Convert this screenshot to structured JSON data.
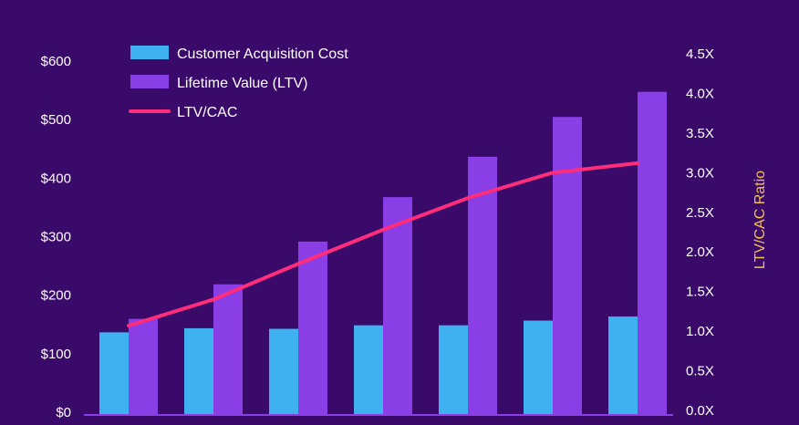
{
  "chart_data": {
    "type": "bar",
    "categories": [
      "",
      "",
      "",
      "",
      "",
      "",
      ""
    ],
    "series": [
      {
        "name": "Customer Acquisition Cost",
        "kind": "bar",
        "axis": "left",
        "color": "#3fb0f0",
        "values": [
          135,
          142,
          141,
          147,
          147,
          155,
          162
        ]
      },
      {
        "name": "Lifetime Value (LTV)",
        "kind": "bar",
        "axis": "left",
        "color": "#8a3ee6",
        "values": [
          158,
          217,
          290,
          366,
          435,
          503,
          546
        ]
      },
      {
        "name": "LTV/CAC",
        "kind": "line",
        "axis": "right",
        "color": "#ff2d7a",
        "values": [
          1.07,
          1.4,
          1.85,
          2.28,
          2.68,
          3.0,
          3.12
        ]
      }
    ],
    "y_left": {
      "label": "",
      "range": [
        0,
        600
      ],
      "ticks": [
        0,
        100,
        200,
        300,
        400,
        500,
        600
      ],
      "tick_labels": [
        "$0",
        "$100",
        "$200",
        "$300",
        "$400",
        "$500",
        "$600"
      ]
    },
    "y_right": {
      "label": "LTV/CAC Ratio",
      "label_color": "#f2c14e",
      "range": [
        0,
        4.5
      ],
      "ticks": [
        0,
        0.5,
        1,
        1.5,
        2,
        2.5,
        3,
        3.5,
        4,
        4.5
      ],
      "tick_labels": [
        "0.0X",
        "0.5X",
        "1.0X",
        "1.5X",
        "2.0X",
        "2.5X",
        "3.0X",
        "3.5X",
        "4.0X",
        "4.5X"
      ]
    },
    "legend_position": "top-left",
    "grid": false
  },
  "colors": {
    "background": "#3a0a6b",
    "text": "#ffffff",
    "baseline": "#8a3ee6"
  }
}
